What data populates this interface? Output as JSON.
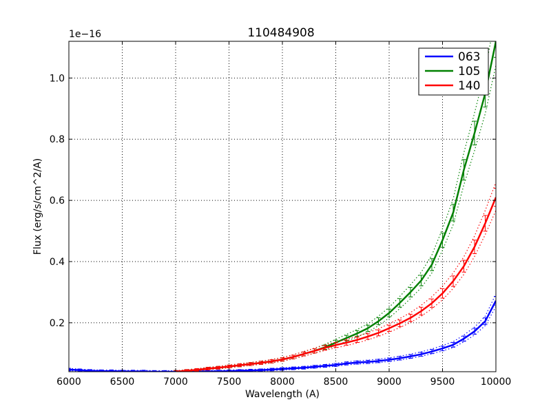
{
  "chart_data": {
    "type": "line",
    "title": "110484908",
    "xlabel": "Wavelength (A)",
    "ylabel": "Flux (erg/s/cm^2/A)",
    "y_scale_label": "1e−16",
    "xlim": [
      6000,
      10000
    ],
    "ylim": [
      0.04,
      1.12
    ],
    "xticks": [
      6000,
      6500,
      7000,
      7500,
      8000,
      8500,
      9000,
      9500,
      10000
    ],
    "xtick_labels": [
      "6000",
      "6500",
      "7000",
      "7500",
      "8000",
      "8500",
      "9000",
      "9500",
      "10000"
    ],
    "yticks": [
      0.2,
      0.4,
      0.6,
      0.8,
      1.0
    ],
    "ytick_labels": [
      "0.2",
      "0.4",
      "0.6",
      "0.8",
      "1.0"
    ],
    "grid": true,
    "grid_style": "dotted",
    "legend_position": "top-right",
    "series": [
      {
        "name": "063",
        "color": "#0000ff",
        "x": [
          6000,
          6100,
          6200,
          6300,
          6400,
          6500,
          6600,
          6700,
          6800,
          6900,
          7000,
          7100,
          7200,
          7300,
          7400,
          7500,
          7600,
          7700,
          7800,
          7900,
          8000,
          8100,
          8200,
          8300,
          8400,
          8500,
          8600,
          8700,
          8800,
          8900,
          9000,
          9100,
          9200,
          9300,
          9400,
          9500,
          9600,
          9700,
          9800,
          9900,
          10000
        ],
        "y": [
          0.047,
          0.045,
          0.043,
          0.042,
          0.042,
          0.041,
          0.041,
          0.041,
          0.04,
          0.04,
          0.04,
          0.04,
          0.04,
          0.041,
          0.041,
          0.042,
          0.043,
          0.044,
          0.045,
          0.047,
          0.049,
          0.051,
          0.053,
          0.056,
          0.059,
          0.062,
          0.067,
          0.07,
          0.072,
          0.075,
          0.079,
          0.084,
          0.09,
          0.097,
          0.106,
          0.116,
          0.128,
          0.148,
          0.172,
          0.205,
          0.272
        ]
      },
      {
        "name": "105",
        "color": "#008000",
        "x": [
          7000,
          7100,
          7200,
          7300,
          7400,
          7500,
          7600,
          7700,
          7800,
          7900,
          8000,
          8100,
          8200,
          8300,
          8400,
          8500,
          8600,
          8700,
          8800,
          8900,
          9000,
          9100,
          9200,
          9300,
          9400,
          9500,
          9600,
          9700,
          9800,
          9900,
          10000
        ],
        "y": [
          0.04,
          0.043,
          0.046,
          0.05,
          0.053,
          0.057,
          0.061,
          0.065,
          0.069,
          0.074,
          0.08,
          0.088,
          0.098,
          0.108,
          0.12,
          0.135,
          0.15,
          0.165,
          0.182,
          0.205,
          0.232,
          0.265,
          0.3,
          0.338,
          0.39,
          0.47,
          0.56,
          0.7,
          0.82,
          0.95,
          1.12
        ]
      },
      {
        "name": "140",
        "color": "#ff0000",
        "x": [
          7000,
          7100,
          7200,
          7300,
          7400,
          7500,
          7600,
          7700,
          7800,
          7900,
          8000,
          8100,
          8200,
          8300,
          8400,
          8500,
          8600,
          8700,
          8800,
          8900,
          9000,
          9100,
          9200,
          9300,
          9400,
          9500,
          9600,
          9700,
          9800,
          9900,
          10000
        ],
        "y": [
          0.04,
          0.043,
          0.046,
          0.05,
          0.053,
          0.057,
          0.061,
          0.065,
          0.069,
          0.074,
          0.08,
          0.088,
          0.098,
          0.108,
          0.118,
          0.127,
          0.135,
          0.144,
          0.155,
          0.167,
          0.182,
          0.198,
          0.216,
          0.238,
          0.264,
          0.296,
          0.336,
          0.385,
          0.448,
          0.525,
          0.61
        ]
      }
    ]
  }
}
